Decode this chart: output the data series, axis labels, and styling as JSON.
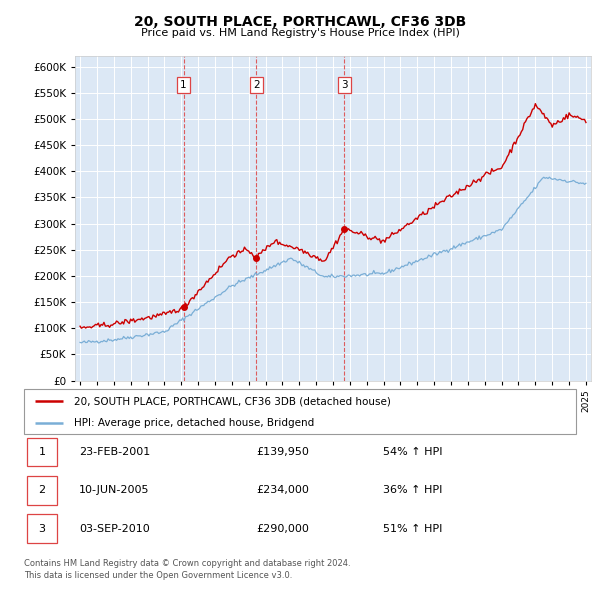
{
  "title": "20, SOUTH PLACE, PORTHCAWL, CF36 3DB",
  "subtitle": "Price paid vs. HM Land Registry's House Price Index (HPI)",
  "plot_bg_color": "#dce8f5",
  "legend_line1": "20, SOUTH PLACE, PORTHCAWL, CF36 3DB (detached house)",
  "legend_line2": "HPI: Average price, detached house, Bridgend",
  "transaction_labels": [
    "1",
    "2",
    "3"
  ],
  "transaction_dates": [
    "23-FEB-2001",
    "10-JUN-2005",
    "03-SEP-2010"
  ],
  "transaction_prices": [
    "£139,950",
    "£234,000",
    "£290,000"
  ],
  "transaction_hpi": [
    "54% ↑ HPI",
    "36% ↑ HPI",
    "51% ↑ HPI"
  ],
  "transaction_years": [
    2001.14,
    2005.44,
    2010.67
  ],
  "transaction_values": [
    139950,
    234000,
    290000
  ],
  "footer": "Contains HM Land Registry data © Crown copyright and database right 2024.\nThis data is licensed under the Open Government Licence v3.0.",
  "ylim": [
    0,
    620000
  ],
  "yticks": [
    0,
    50000,
    100000,
    150000,
    200000,
    250000,
    300000,
    350000,
    400000,
    450000,
    500000,
    550000,
    600000
  ],
  "red_color": "#cc0000",
  "blue_color": "#7aaed6",
  "dashed_color": "#dd4444"
}
